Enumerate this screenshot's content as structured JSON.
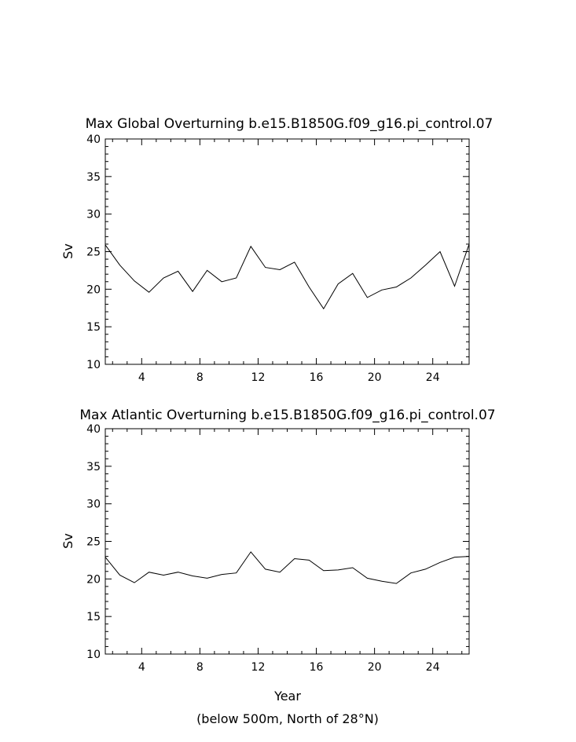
{
  "chart_data": [
    {
      "type": "line",
      "title": "Max Global Overturning b.e15.B1850G.f09_g16.pi_control.07",
      "xlabel": "",
      "ylabel": "Sv",
      "xlim": [
        1.5,
        26.5
      ],
      "ylim": [
        10,
        40
      ],
      "xticks": [
        4,
        8,
        12,
        16,
        20,
        24
      ],
      "yticks": [
        10,
        15,
        20,
        25,
        30,
        35,
        40
      ],
      "x": [
        1.5,
        2.5,
        3.5,
        4.5,
        5.5,
        6.5,
        7.5,
        8.5,
        9.5,
        10.5,
        11.5,
        12.5,
        13.5,
        14.5,
        15.5,
        16.5,
        17.5,
        18.5,
        19.5,
        20.5,
        21.5,
        22.5,
        23.5,
        24.5,
        25.5,
        26.5
      ],
      "series": [
        {
          "values": [
            25.9,
            23.2,
            21.1,
            19.6,
            21.5,
            22.4,
            19.7,
            22.5,
            21.0,
            21.5,
            25.7,
            22.9,
            22.6,
            23.6,
            20.3,
            17.4,
            20.7,
            22.1,
            18.9,
            19.9,
            20.3,
            21.5,
            23.2,
            25.0,
            20.4,
            26.0
          ]
        }
      ]
    },
    {
      "type": "line",
      "title": "Max Atlantic Overturning b.e15.B1850G.f09_g16.pi_control.07",
      "xlabel": "Year",
      "ylabel": "Sv",
      "xlim": [
        1.5,
        26.5
      ],
      "ylim": [
        10,
        40
      ],
      "xticks": [
        4,
        8,
        12,
        16,
        20,
        24
      ],
      "yticks": [
        10,
        15,
        20,
        25,
        30,
        35,
        40
      ],
      "x": [
        1.5,
        2.5,
        3.5,
        4.5,
        5.5,
        6.5,
        7.5,
        8.5,
        9.5,
        10.5,
        11.5,
        12.5,
        13.5,
        14.5,
        15.5,
        16.5,
        17.5,
        18.5,
        19.5,
        20.5,
        21.5,
        22.5,
        23.5,
        24.5,
        25.5,
        26.5
      ],
      "series": [
        {
          "values": [
            22.9,
            20.5,
            19.5,
            20.9,
            20.5,
            20.9,
            20.4,
            20.1,
            20.6,
            20.8,
            23.6,
            21.3,
            20.9,
            22.7,
            22.5,
            21.1,
            21.2,
            21.5,
            20.1,
            19.7,
            19.4,
            20.8,
            21.3,
            22.2,
            22.9,
            23.0
          ]
        }
      ]
    }
  ],
  "footnote": "(below 500m, North of 28°N)"
}
